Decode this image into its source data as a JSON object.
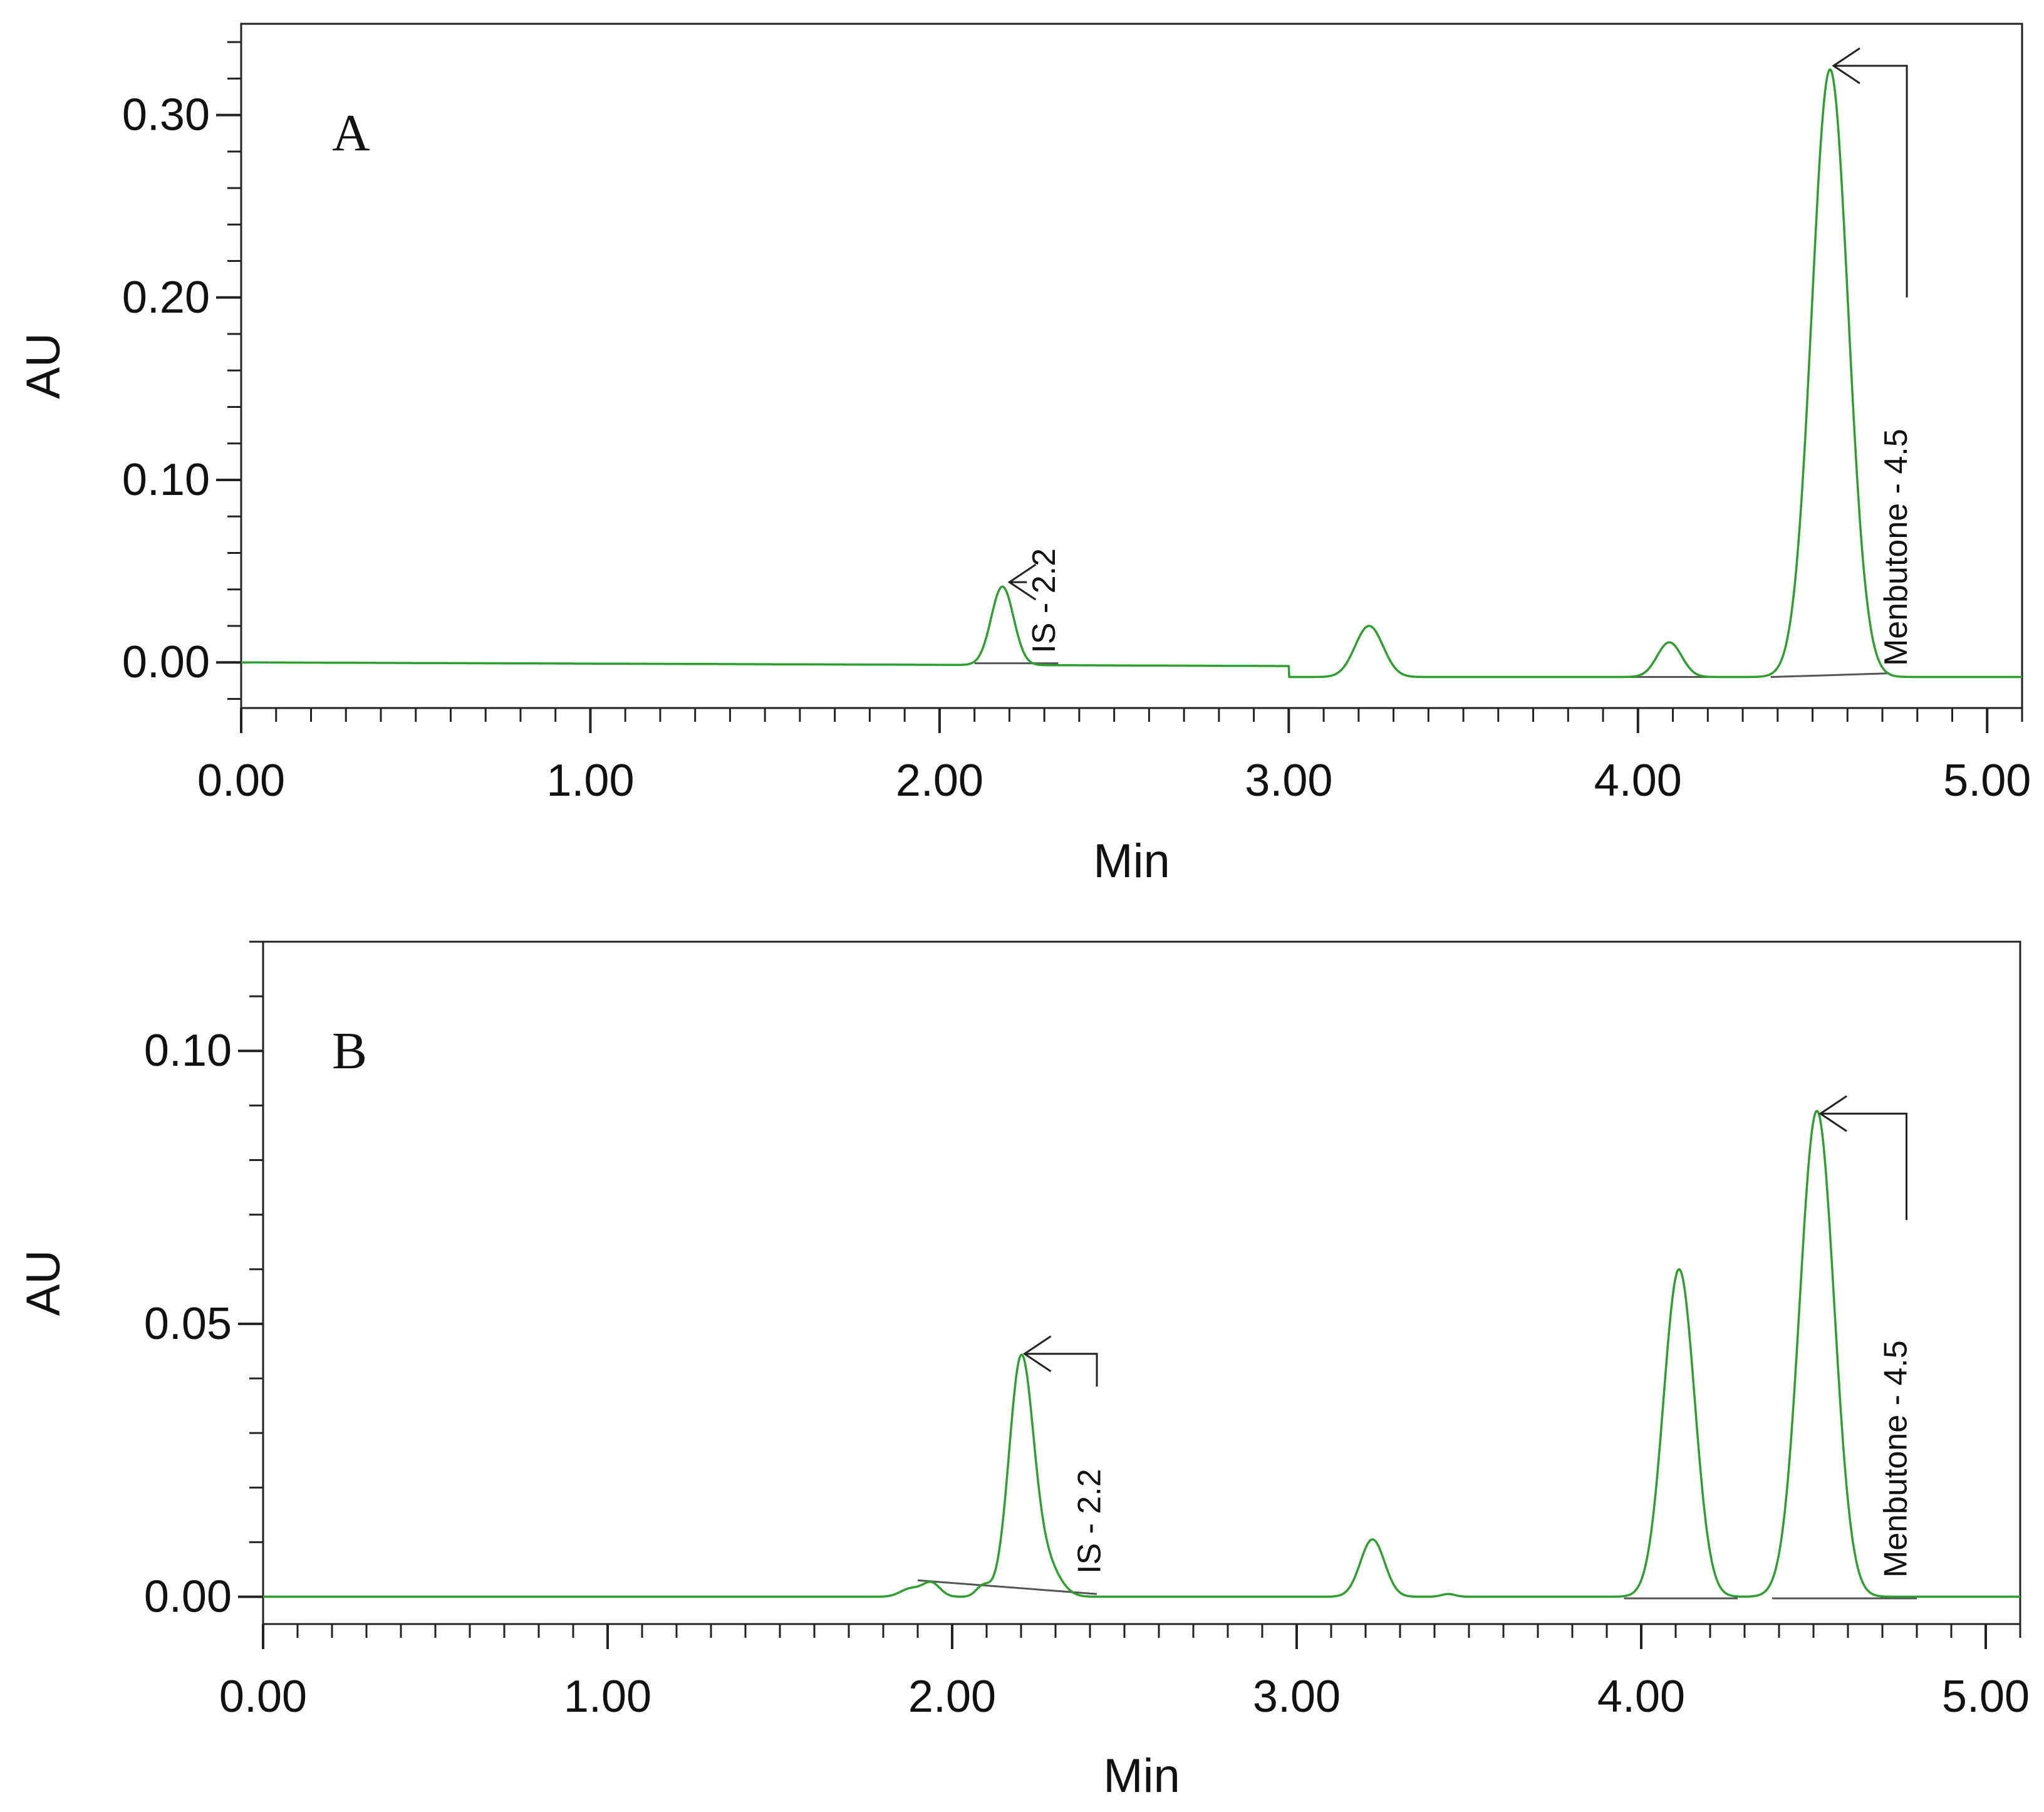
{
  "colors": {
    "trace": "#2ca02c",
    "baseline": "#555555",
    "axis": "#222222",
    "annotation": "#222222"
  },
  "chart_data": [
    {
      "type": "line",
      "panel_label": "A",
      "title": "",
      "xlabel": "Min",
      "ylabel": "AU",
      "xlim": [
        0,
        5.1
      ],
      "ylim": [
        -0.025,
        0.35
      ],
      "x_ticks": [
        "0.00",
        "1.00",
        "2.00",
        "3.00",
        "4.00",
        "5.00"
      ],
      "y_ticks": [
        "0.00",
        "0.10",
        "0.20",
        "0.30"
      ],
      "grid": false,
      "trace": {
        "base_segments": [
          {
            "x": [
              0,
              3.0
            ],
            "y": [
              0,
              -0.002
            ]
          },
          {
            "x": [
              3.0,
              5.1
            ],
            "y": [
              -0.008,
              -0.008
            ]
          }
        ],
        "peaks": [
          {
            "rt": 2.18,
            "height": 0.043,
            "width": 0.032
          },
          {
            "rt": 3.23,
            "height": 0.028,
            "width": 0.04
          },
          {
            "rt": 4.09,
            "height": 0.019,
            "width": 0.035
          },
          {
            "rt": 4.55,
            "height": 0.333,
            "width": 0.052
          }
        ]
      },
      "integration_baselines": [
        {
          "x": [
            2.1,
            2.34
          ],
          "y": [
            -0.0005,
            -0.0005
          ]
        },
        {
          "x": [
            3.95,
            4.28
          ],
          "y": [
            -0.008,
            -0.008
          ]
        },
        {
          "x": [
            4.38,
            4.72
          ],
          "y": [
            -0.008,
            -0.006
          ]
        }
      ],
      "annotations": [
        {
          "text": "IS - 2.2",
          "x": 2.2,
          "y": 0.044,
          "text_x": 2.33,
          "text_y": 0.005,
          "elbow": [
            2.25,
            0.044
          ]
        },
        {
          "text": "Menbutone - 4.5",
          "x": 4.56,
          "y": 0.327,
          "text_x": 4.77,
          "text_y": -0.002,
          "elbow": [
            4.77,
            0.327
          ],
          "leader_end": [
            4.77,
            0.2
          ]
        }
      ]
    },
    {
      "type": "line",
      "panel_label": "B",
      "title": "",
      "xlabel": "Min",
      "ylabel": "AU",
      "xlim": [
        0,
        5.1
      ],
      "ylim": [
        -0.005,
        0.12
      ],
      "x_ticks": [
        "0.00",
        "1.00",
        "2.00",
        "3.00",
        "4.00",
        "5.00"
      ],
      "y_ticks": [
        "0.00",
        "0.05",
        "0.10"
      ],
      "grid": false,
      "trace": {
        "base_segments": [
          {
            "x": [
              0,
              5.1
            ],
            "y": [
              0,
              0
            ]
          }
        ],
        "peaks": [
          {
            "rt": 1.88,
            "height": 0.0015,
            "width": 0.03
          },
          {
            "rt": 1.94,
            "height": 0.0025,
            "width": 0.025
          },
          {
            "rt": 2.09,
            "height": 0.002,
            "width": 0.02
          },
          {
            "rt": 2.2,
            "height": 0.043,
            "width": 0.035
          },
          {
            "rt": 2.27,
            "height": 0.006,
            "width": 0.04
          },
          {
            "rt": 3.22,
            "height": 0.0105,
            "width": 0.035
          },
          {
            "rt": 3.44,
            "height": 0.0005,
            "width": 0.02
          },
          {
            "rt": 4.11,
            "height": 0.06,
            "width": 0.045
          },
          {
            "rt": 4.51,
            "height": 0.089,
            "width": 0.05
          }
        ]
      },
      "integration_baselines": [
        {
          "x": [
            1.9,
            2.42
          ],
          "y": [
            0.003,
            0.0005
          ]
        },
        {
          "x": [
            3.95,
            4.28
          ],
          "y": [
            -0.0003,
            -0.0003
          ]
        },
        {
          "x": [
            4.38,
            4.8
          ],
          "y": [
            -0.0003,
            -0.0003
          ]
        }
      ],
      "annotations": [
        {
          "text": "IS - 2.2",
          "x": 2.21,
          "y": 0.0445,
          "text_x": 2.43,
          "text_y": 0.0042,
          "elbow": [
            2.42,
            0.0445
          ],
          "leader_end": [
            2.42,
            0.0385
          ]
        },
        {
          "text": "Menbutone - 4.5",
          "x": 4.52,
          "y": 0.0885,
          "text_x": 4.77,
          "text_y": 0.0035,
          "elbow": [
            4.77,
            0.0885
          ],
          "leader_end": [
            4.77,
            0.069
          ]
        }
      ]
    }
  ]
}
